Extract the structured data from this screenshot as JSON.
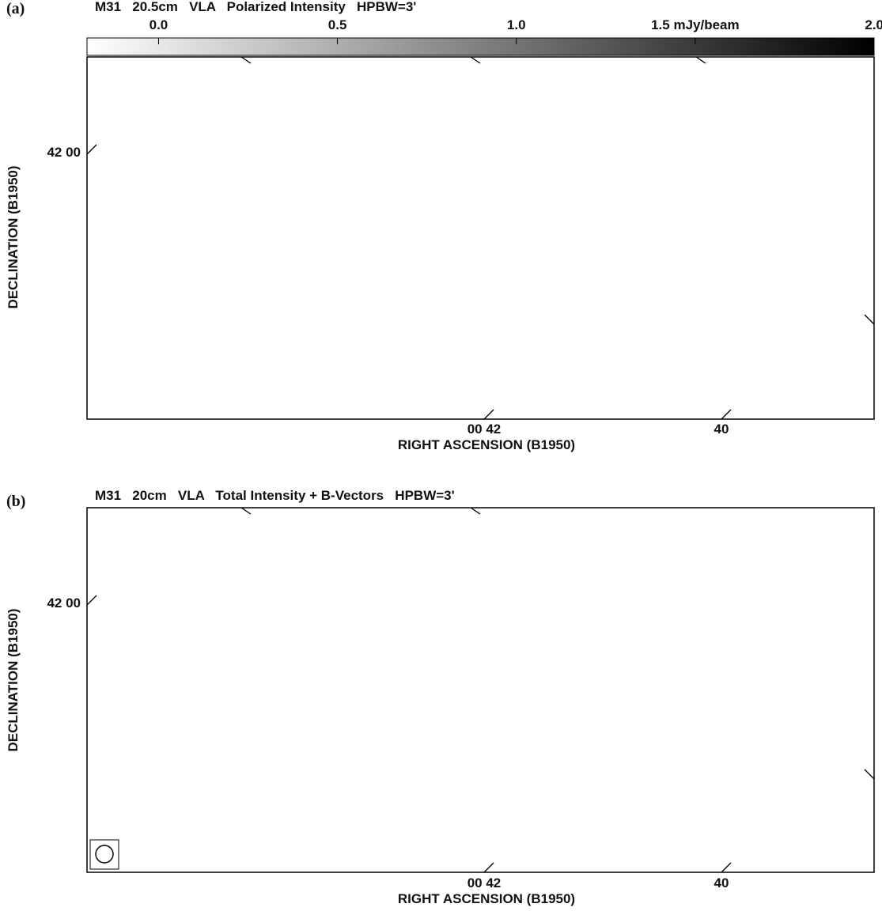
{
  "panels": [
    {
      "letter": "(a)",
      "title": "M31   20.5cm   VLA   Polarized Intensity   HPBW=3'",
      "colorbar": {
        "lim": [
          -0.2,
          2.0
        ],
        "ticks": [
          {
            "value": 0,
            "label": "0.0"
          },
          0.5,
          {
            "value": 1,
            "label": "1.0"
          },
          {
            "value": 1.5,
            "label": "1.5 mJy/beam"
          },
          {
            "value": 2,
            "label": "2.0"
          }
        ]
      },
      "ylabel": "DECLINATION (B1950)",
      "xlabel": "RIGHT ASCENSION (B1950)",
      "yticklabels": [
        "42 00"
      ],
      "xticklabels": [
        "00 42",
        "40"
      ]
    },
    {
      "letter": "(b)",
      "title": "M31   20cm   VLA   Total Intensity + B-Vectors   HPBW=3'",
      "ylabel": "DECLINATION (B1950)",
      "xlabel": "RIGHT ASCENSION (B1950)",
      "yticklabels": [
        "42 00"
      ],
      "xticklabels": [
        "00 42",
        "40"
      ]
    }
  ]
}
